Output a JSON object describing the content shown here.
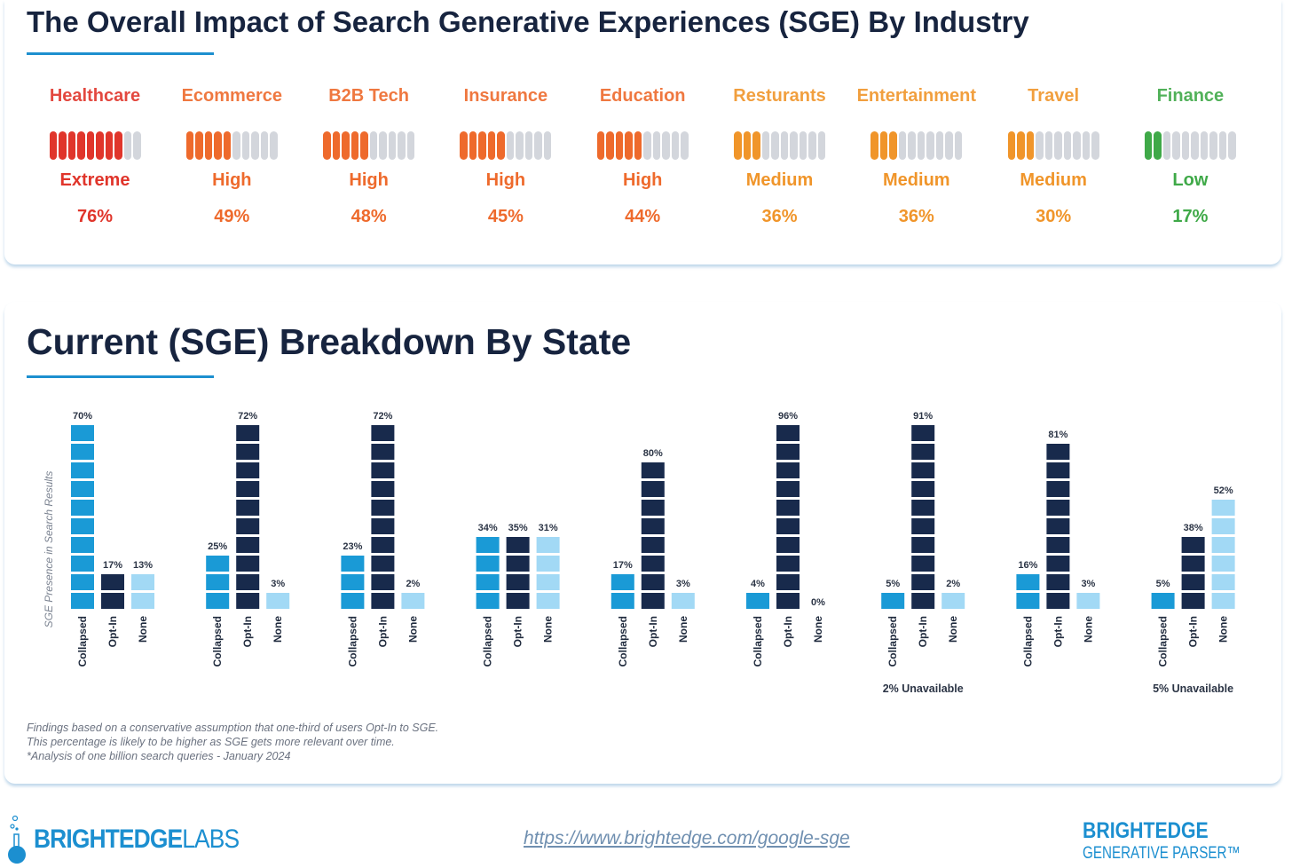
{
  "colors": {
    "extreme": "#e0352b",
    "high": "#ee6a2c",
    "medium": "#f0952a",
    "low": "#3fa948",
    "empty": "#d3d6dc",
    "collapsed": "#1a9ad6",
    "optin": "#182a4c",
    "none": "#a2d9f5",
    "accent": "#1d8fcf"
  },
  "industry": {
    "title": "The Overall Impact of Search Generative Experiences (SGE) By Industry",
    "items": [
      {
        "name": "Healthcare",
        "level": "Extreme",
        "pct": "76%",
        "filled": 8,
        "segments": 10,
        "tone": "extreme"
      },
      {
        "name": "Ecommerce",
        "level": "High",
        "pct": "49%",
        "filled": 5,
        "segments": 10,
        "tone": "high"
      },
      {
        "name": "B2B Tech",
        "level": "High",
        "pct": "48%",
        "filled": 5,
        "segments": 10,
        "tone": "high"
      },
      {
        "name": "Insurance",
        "level": "High",
        "pct": "45%",
        "filled": 5,
        "segments": 10,
        "tone": "high"
      },
      {
        "name": "Education",
        "level": "High",
        "pct": "44%",
        "filled": 5,
        "segments": 10,
        "tone": "high"
      },
      {
        "name": "Resturants",
        "level": "Medium",
        "pct": "36%",
        "filled": 3,
        "segments": 10,
        "tone": "medium"
      },
      {
        "name": "Entertainment",
        "level": "Medium",
        "pct": "36%",
        "filled": 3,
        "segments": 10,
        "tone": "medium"
      },
      {
        "name": "Travel",
        "level": "Medium",
        "pct": "30%",
        "filled": 3,
        "segments": 10,
        "tone": "medium"
      },
      {
        "name": "Finance",
        "level": "Low",
        "pct": "17%",
        "filled": 2,
        "segments": 10,
        "tone": "low"
      }
    ]
  },
  "chart_data": {
    "type": "bar",
    "title": "Current (SGE) Breakdown By State",
    "ylabel": "SGE Presence in Search Results",
    "categories": [
      "Collapsed",
      "Opt-In",
      "None"
    ],
    "groups": [
      {
        "values": [
          70,
          17,
          13
        ],
        "note": ""
      },
      {
        "values": [
          25,
          72,
          3
        ],
        "note": ""
      },
      {
        "values": [
          23,
          72,
          2
        ],
        "note": ""
      },
      {
        "values": [
          34,
          35,
          31
        ],
        "note": ""
      },
      {
        "values": [
          17,
          80,
          3
        ],
        "note": ""
      },
      {
        "values": [
          4,
          96,
          0
        ],
        "note": ""
      },
      {
        "values": [
          5,
          91,
          2
        ],
        "note": "2% Unavailable"
      },
      {
        "values": [
          16,
          81,
          3
        ],
        "note": ""
      },
      {
        "values": [
          5,
          38,
          52
        ],
        "note": "5% Unavailable"
      }
    ],
    "notes": [
      "Findings based on a conservative assumption that one-third of users Opt-In to SGE.",
      "This percentage is likely to be higher as SGE gets more relevant over time.",
      "*Analysis of one billion search queries - January 2024"
    ]
  },
  "footer": {
    "logo": "BRIGHTEDGE LABS",
    "logo_a": "BRIGHTEDGE",
    "logo_b": "LABS",
    "url": "https://www.brightedge.com/google-sge",
    "brand_a": "BRIGHTEDGE",
    "brand_b": "GENERATIVE PARSER™"
  }
}
